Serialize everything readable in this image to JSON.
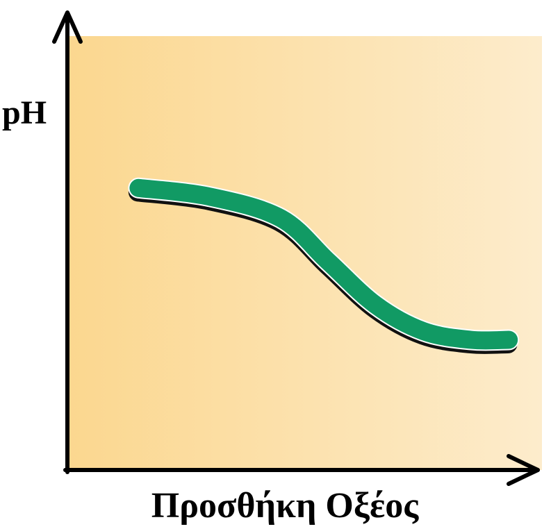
{
  "colors": {
    "background_left": "#fbd78f",
    "background_right": "#fdeccc",
    "curve": "#119a64",
    "curve_outline": "#111111",
    "axis": "#000000"
  },
  "chart_data": {
    "type": "line",
    "title": "",
    "xlabel": "Προσθήκη Οξέος",
    "ylabel": "pH",
    "grid": false,
    "ticks": false,
    "xlim": [
      0,
      100
    ],
    "ylim": [
      0,
      100
    ],
    "series": [
      {
        "x": [
          15,
          30,
          45,
          55,
          65,
          75,
          85,
          93
        ],
        "values": [
          65,
          63,
          58,
          48,
          38,
          32,
          30,
          30
        ]
      }
    ]
  }
}
